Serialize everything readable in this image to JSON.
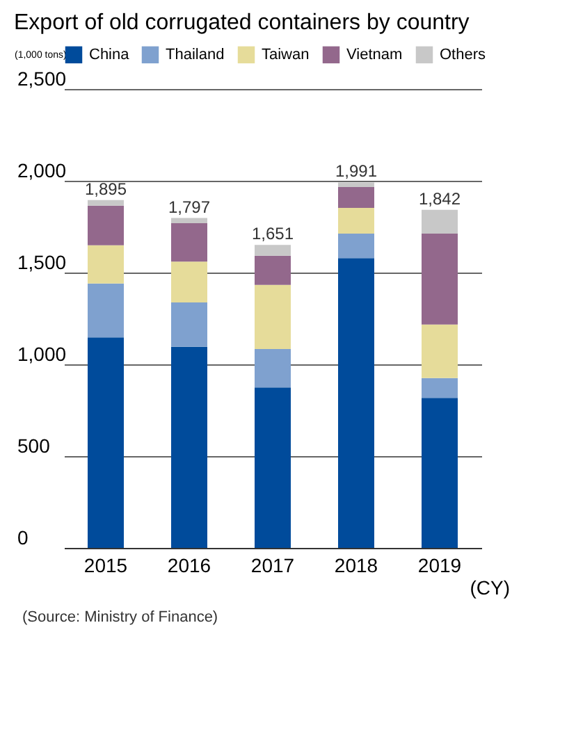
{
  "chart_data": {
    "type": "bar",
    "title": "Export of old corrugated containers by country",
    "ylabel": "(1,000 tons)",
    "xlabel": "(CY)",
    "categories": [
      "2015",
      "2016",
      "2017",
      "2018",
      "2019"
    ],
    "stacked": true,
    "series": [
      {
        "name": "China",
        "color": "#004b9b",
        "values": [
          1147,
          1096,
          874,
          1579,
          817
        ]
      },
      {
        "name": "Thailand",
        "color": "#7fa1cf",
        "values": [
          293,
          241,
          209,
          133,
          108
        ]
      },
      {
        "name": "Taiwan",
        "color": "#e6dc9a",
        "values": [
          209,
          223,
          350,
          140,
          292
        ]
      },
      {
        "name": "Vietnam",
        "color": "#93688c",
        "values": [
          216,
          209,
          159,
          114,
          495
        ]
      },
      {
        "name": "Others",
        "color": "#c8c8c8",
        "values": [
          30,
          28,
          59,
          25,
          130
        ]
      }
    ],
    "totals": [
      "1,895",
      "1,797",
      "1,651",
      "1,991",
      "1,842"
    ],
    "ylim": [
      0,
      2500
    ],
    "yticks": [
      0,
      500,
      {
        "value": 1000,
        "label": "1,000"
      },
      {
        "value": 1500,
        "label": "1,500"
      },
      {
        "value": 2000,
        "label": "2,000"
      },
      {
        "value": 2500,
        "label": "2,500"
      }
    ],
    "grid": "y",
    "legend": "top",
    "annotations": [
      "(Source: Ministry of Finance)"
    ]
  }
}
